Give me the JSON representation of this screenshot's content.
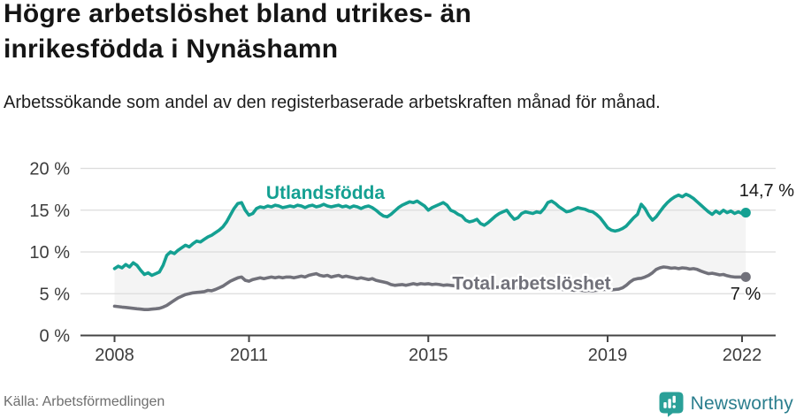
{
  "header": {
    "title": "Högre arbetslöshet bland utrikes- än inrikesfödda i Nynäshamn",
    "subtitle": "Arbetssökande som andel av den registerbaserade arbetskraften månad för månad."
  },
  "chart_data": {
    "type": "line",
    "unit": "%",
    "x_start": "2008-01",
    "x_interval": "month",
    "x_ticks": [
      2008,
      2011,
      2015,
      2019,
      2022
    ],
    "y_ticks": [
      0,
      5,
      10,
      15,
      20
    ],
    "y_tick_suffix": " %",
    "ylim": [
      0,
      20
    ],
    "grid": true,
    "band_fill": "#f4f4f4",
    "axis_color": "#444444",
    "grid_color": "#dcdcdc",
    "series": [
      {
        "name": "Utlandsfödda",
        "color": "#14a092",
        "end_label": "14,7 %",
        "end_value": 14.7,
        "values": [
          8.0,
          8.3,
          8.1,
          8.5,
          8.2,
          8.7,
          8.4,
          7.8,
          7.3,
          7.5,
          7.2,
          7.4,
          7.6,
          8.4,
          9.6,
          10.0,
          9.8,
          10.2,
          10.5,
          10.8,
          10.6,
          11.0,
          11.3,
          11.2,
          11.5,
          11.8,
          12.0,
          12.3,
          12.6,
          13.0,
          13.6,
          14.4,
          15.2,
          15.8,
          15.9,
          15.0,
          14.4,
          14.6,
          15.2,
          15.4,
          15.3,
          15.5,
          15.4,
          15.6,
          15.5,
          15.3,
          15.4,
          15.5,
          15.4,
          15.6,
          15.5,
          15.3,
          15.5,
          15.6,
          15.4,
          15.5,
          15.7,
          15.5,
          15.4,
          15.5,
          15.6,
          15.4,
          15.5,
          15.3,
          15.5,
          15.4,
          15.2,
          15.4,
          15.5,
          15.3,
          15.0,
          14.6,
          14.3,
          14.2,
          14.5,
          14.9,
          15.3,
          15.6,
          15.8,
          16.0,
          15.9,
          16.1,
          15.8,
          15.5,
          15.0,
          15.3,
          15.5,
          15.7,
          15.9,
          15.6,
          15.0,
          14.8,
          14.5,
          14.3,
          13.8,
          13.6,
          13.7,
          13.9,
          13.4,
          13.2,
          13.5,
          13.9,
          14.3,
          14.6,
          14.8,
          15.0,
          14.4,
          13.9,
          14.1,
          14.6,
          14.8,
          14.7,
          14.6,
          14.8,
          14.7,
          15.2,
          15.9,
          16.1,
          15.8,
          15.4,
          15.1,
          14.8,
          14.9,
          15.1,
          15.3,
          15.2,
          15.1,
          14.9,
          14.8,
          14.5,
          14.1,
          13.5,
          12.9,
          12.6,
          12.5,
          12.6,
          12.8,
          13.1,
          13.6,
          14.1,
          14.5,
          15.7,
          15.2,
          14.4,
          13.8,
          14.2,
          14.8,
          15.4,
          15.9,
          16.3,
          16.6,
          16.8,
          16.6,
          16.9,
          16.7,
          16.4,
          16.0,
          15.6,
          15.2,
          14.8,
          14.5,
          14.9,
          14.6,
          15.0,
          14.7,
          14.9,
          14.6,
          14.8,
          14.6,
          14.7
        ]
      },
      {
        "name": "Total arbetslöshet",
        "color": "#71717a",
        "end_label": "7 %",
        "end_value": 7,
        "values": [
          3.5,
          3.45,
          3.4,
          3.35,
          3.3,
          3.25,
          3.2,
          3.15,
          3.1,
          3.1,
          3.15,
          3.2,
          3.25,
          3.4,
          3.6,
          3.9,
          4.2,
          4.5,
          4.7,
          4.9,
          5.0,
          5.1,
          5.15,
          5.2,
          5.25,
          5.4,
          5.35,
          5.5,
          5.7,
          5.9,
          6.2,
          6.5,
          6.7,
          6.9,
          7.0,
          6.6,
          6.5,
          6.7,
          6.8,
          6.9,
          6.8,
          6.9,
          7.0,
          6.9,
          7.0,
          6.9,
          7.0,
          7.0,
          6.9,
          7.0,
          7.1,
          7.0,
          7.2,
          7.3,
          7.4,
          7.2,
          7.1,
          7.2,
          7.0,
          7.1,
          7.2,
          7.0,
          7.1,
          7.0,
          6.9,
          6.8,
          6.9,
          6.8,
          6.7,
          6.8,
          6.6,
          6.5,
          6.4,
          6.3,
          6.1,
          6.0,
          6.05,
          6.1,
          6.0,
          6.1,
          6.2,
          6.1,
          6.2,
          6.15,
          6.2,
          6.1,
          6.15,
          6.1,
          6.0,
          6.05,
          6.0,
          5.95,
          6.0,
          5.9,
          5.95,
          5.9,
          5.9,
          5.85,
          5.9,
          5.8,
          5.85,
          5.8,
          5.75,
          5.8,
          5.7,
          5.75,
          5.7,
          5.7,
          5.75,
          5.7,
          5.65,
          5.7,
          5.6,
          5.65,
          5.6,
          5.55,
          5.6,
          5.5,
          5.55,
          5.5,
          5.5,
          5.45,
          5.5,
          5.4,
          5.45,
          5.4,
          5.35,
          5.4,
          5.35,
          5.4,
          5.45,
          5.5,
          5.5,
          5.45,
          5.5,
          5.55,
          5.7,
          6.0,
          6.4,
          6.7,
          6.8,
          6.85,
          7.0,
          7.2,
          7.5,
          7.9,
          8.1,
          8.2,
          8.15,
          8.05,
          8.1,
          8.0,
          8.1,
          8.05,
          7.95,
          8.0,
          7.9,
          7.7,
          7.55,
          7.4,
          7.45,
          7.35,
          7.25,
          7.3,
          7.15,
          7.05,
          7.0,
          7.0,
          7.0,
          7.0
        ]
      }
    ]
  },
  "footer": {
    "source": "Källa: Arbetsförmedlingen",
    "brand": "Newsworthy"
  }
}
